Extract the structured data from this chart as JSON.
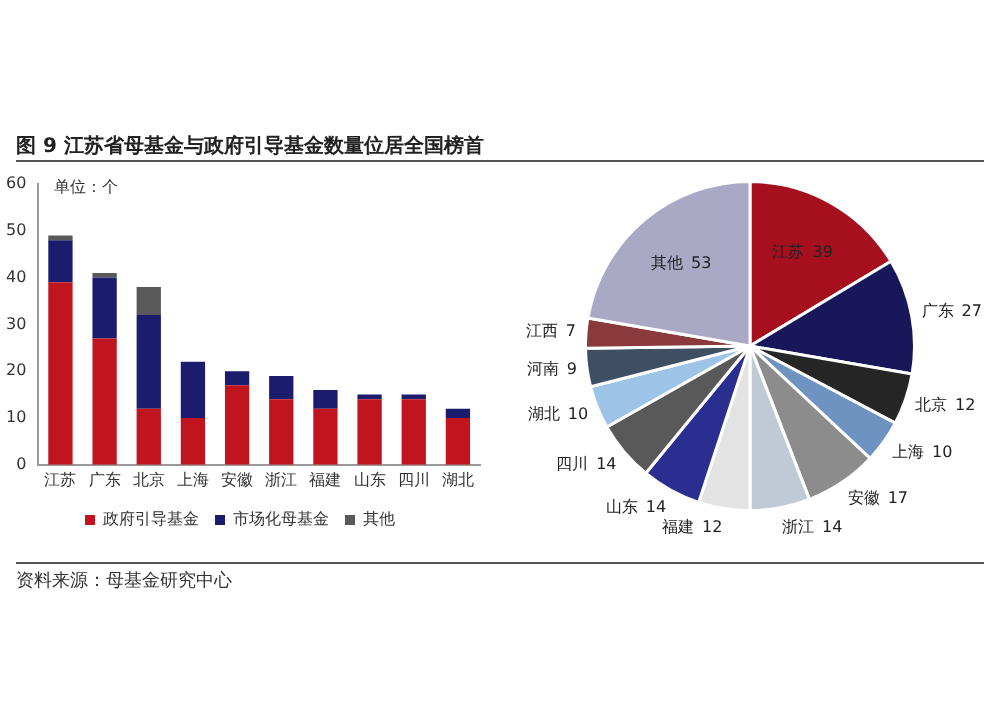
{
  "chart_data": [
    {
      "type": "bar",
      "title": "图 9 江苏省母基金与政府引导基金数量位居全国榜首",
      "ylabel": "单位：个",
      "stacked": true,
      "categories": [
        "江苏",
        "广东",
        "北京",
        "上海",
        "安徽",
        "浙江",
        "福建",
        "山东",
        "四川",
        "湖北"
      ],
      "series": [
        {
          "name": "政府引导基金",
          "color": "#c0141f",
          "values": [
            39,
            27,
            12,
            10,
            17,
            14,
            12,
            14,
            14,
            10
          ]
        },
        {
          "name": "市场化母基金",
          "color": "#1c1c6e",
          "values": [
            9,
            13,
            20,
            12,
            3,
            5,
            4,
            1,
            1,
            2
          ]
        },
        {
          "name": "其他",
          "color": "#595959",
          "values": [
            1,
            1,
            6,
            0,
            0,
            0,
            0,
            0,
            0,
            0
          ]
        }
      ],
      "ylim": [
        0,
        60
      ],
      "yticks": [
        0,
        10,
        20,
        30,
        40,
        50,
        60
      ],
      "grid": false,
      "legend": "bottom",
      "annotations": [
        "资料来源：母基金研究中心"
      ]
    },
    {
      "type": "pie",
      "categories": [
        "江苏",
        "广东",
        "北京",
        "上海",
        "安徽",
        "浙江",
        "福建",
        "山东",
        "四川",
        "湖北",
        "河南",
        "江西",
        "其他"
      ],
      "values": [
        39,
        27,
        12,
        10,
        17,
        14,
        12,
        14,
        14,
        10,
        9,
        7,
        53
      ],
      "colors": [
        "#a50f1e",
        "#17175a",
        "#262626",
        "#6f93c0",
        "#8c8c8c",
        "#bfcad6",
        "#e3e3e3",
        "#2a2f8f",
        "#595959",
        "#9dc3e6",
        "#3f4f63",
        "#8a3a3a",
        "#a9a9c5"
      ],
      "data_labels": true,
      "legend": false
    }
  ]
}
